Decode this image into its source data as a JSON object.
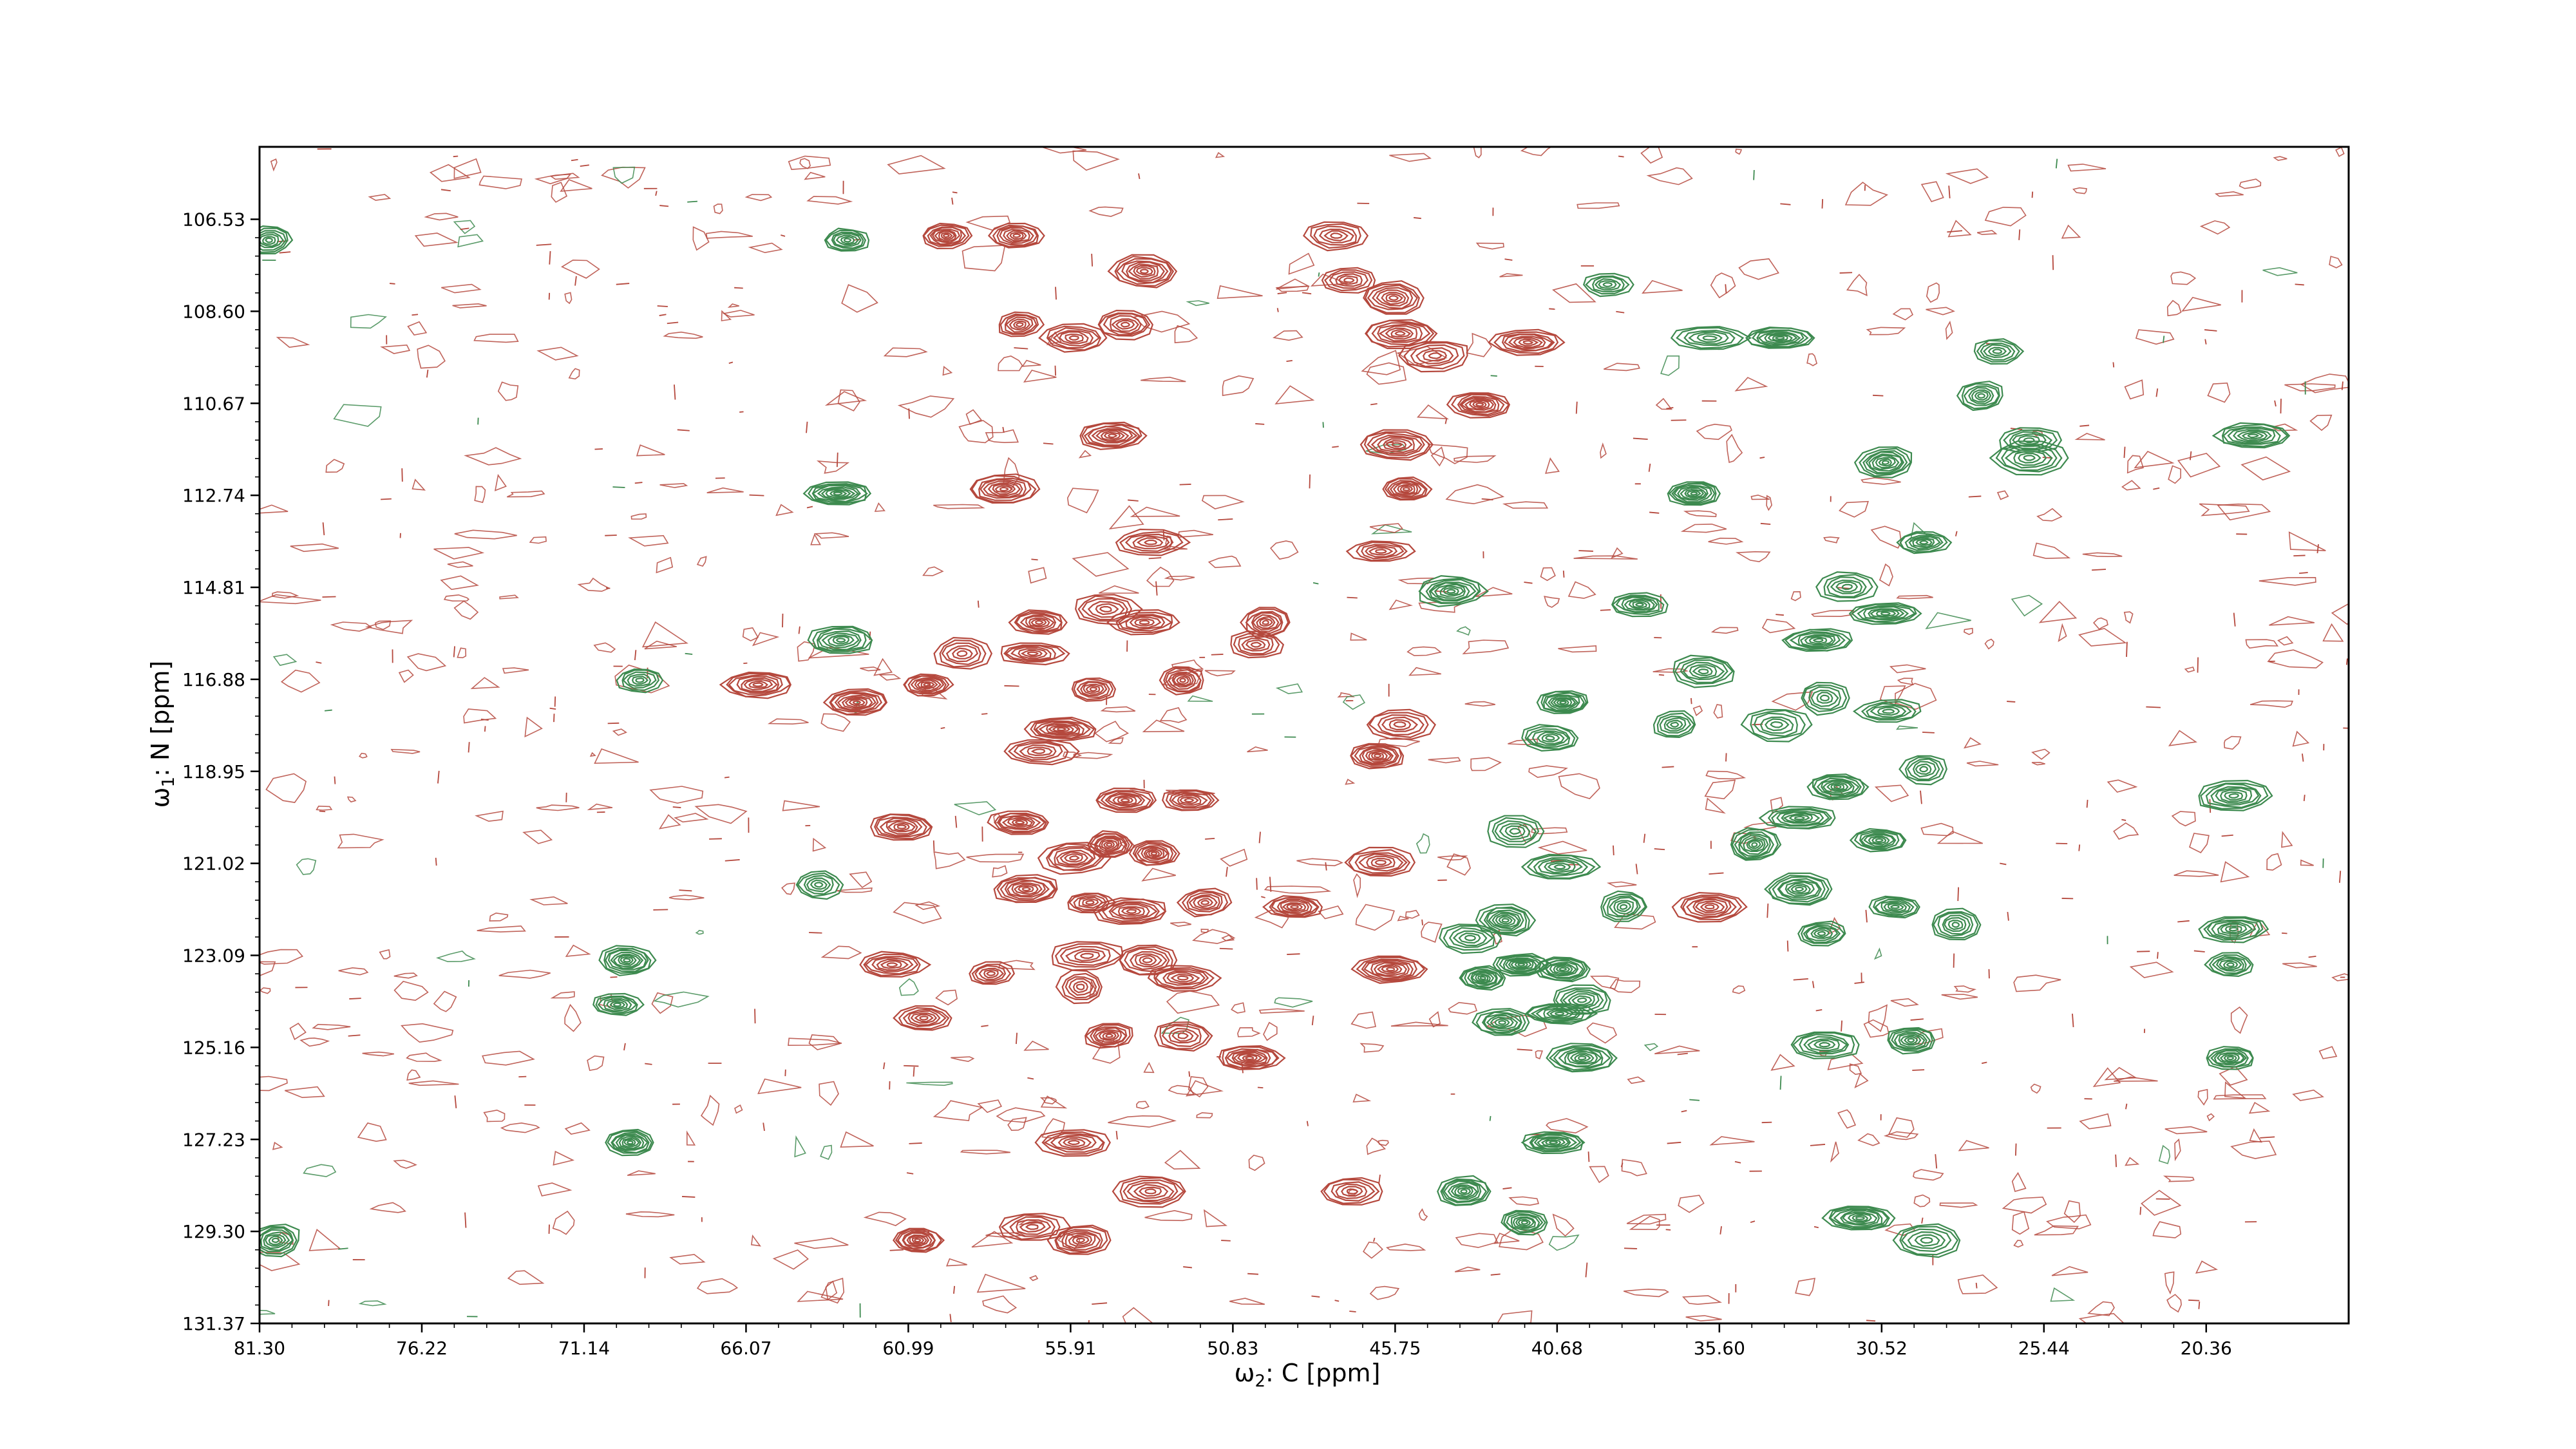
{
  "chart_data": {
    "type": "contour",
    "title": "",
    "xlabel_symbol": "ω",
    "xlabel_sub": "2",
    "xlabel_rest": ": C [ppm]",
    "ylabel_symbol": "ω",
    "ylabel_sub": "1",
    "ylabel_rest": ": N [ppm]",
    "xlim": [
      81.3,
      15.9
    ],
    "ylim": [
      131.37,
      104.9
    ],
    "x_inverted": true,
    "y_inverted": true,
    "xticks": [
      81.3,
      76.22,
      71.14,
      66.07,
      60.99,
      55.91,
      50.83,
      45.75,
      40.68,
      35.6,
      30.52,
      25.44,
      20.36
    ],
    "xtick_labels": [
      "81.30",
      "76.22",
      "71.14",
      "66.07",
      "60.99",
      "55.91",
      "50.83",
      "45.75",
      "40.68",
      "35.60",
      "30.52",
      "25.44",
      "20.36"
    ],
    "yticks": [
      106.53,
      108.6,
      110.67,
      112.74,
      114.81,
      116.88,
      118.95,
      121.02,
      123.09,
      125.16,
      127.23,
      129.3,
      131.37
    ],
    "ytick_labels": [
      "106.53",
      "108.60",
      "110.67",
      "112.74",
      "114.81",
      "116.88",
      "118.95",
      "121.02",
      "123.09",
      "125.16",
      "127.23",
      "129.30",
      "131.37"
    ],
    "grid": false,
    "positive_color": "#b5483d",
    "negative_color": "#3d8a4f",
    "positive_peaks": [
      {
        "x": 59.8,
        "y": 106.9
      },
      {
        "x": 57.6,
        "y": 106.9
      },
      {
        "x": 53.6,
        "y": 107.7
      },
      {
        "x": 57.5,
        "y": 108.9
      },
      {
        "x": 54.2,
        "y": 108.9
      },
      {
        "x": 55.8,
        "y": 109.2
      },
      {
        "x": 54.6,
        "y": 111.4
      },
      {
        "x": 58.0,
        "y": 112.6
      },
      {
        "x": 53.4,
        "y": 113.8
      },
      {
        "x": 56.9,
        "y": 115.6
      },
      {
        "x": 54.8,
        "y": 115.3
      },
      {
        "x": 53.6,
        "y": 115.6
      },
      {
        "x": 59.3,
        "y": 116.3
      },
      {
        "x": 57.1,
        "y": 116.3
      },
      {
        "x": 52.4,
        "y": 116.9
      },
      {
        "x": 55.2,
        "y": 117.1
      },
      {
        "x": 60.4,
        "y": 117.0
      },
      {
        "x": 62.6,
        "y": 117.4
      },
      {
        "x": 65.7,
        "y": 117.0
      },
      {
        "x": 56.2,
        "y": 118.0
      },
      {
        "x": 56.9,
        "y": 118.5
      },
      {
        "x": 54.2,
        "y": 119.6
      },
      {
        "x": 52.2,
        "y": 119.6
      },
      {
        "x": 57.5,
        "y": 120.1
      },
      {
        "x": 61.2,
        "y": 120.2
      },
      {
        "x": 54.7,
        "y": 120.6
      },
      {
        "x": 55.8,
        "y": 120.9
      },
      {
        "x": 53.3,
        "y": 120.8
      },
      {
        "x": 57.3,
        "y": 121.6
      },
      {
        "x": 55.3,
        "y": 121.9
      },
      {
        "x": 51.7,
        "y": 121.9
      },
      {
        "x": 48.9,
        "y": 122.0
      },
      {
        "x": 58.4,
        "y": 123.5
      },
      {
        "x": 61.5,
        "y": 123.3
      },
      {
        "x": 55.6,
        "y": 123.8
      },
      {
        "x": 52.4,
        "y": 123.6
      },
      {
        "x": 53.5,
        "y": 123.2
      },
      {
        "x": 54.7,
        "y": 124.9
      },
      {
        "x": 52.4,
        "y": 124.9
      },
      {
        "x": 60.5,
        "y": 124.5
      },
      {
        "x": 50.3,
        "y": 125.4
      },
      {
        "x": 47.2,
        "y": 107.9
      },
      {
        "x": 45.8,
        "y": 108.3
      },
      {
        "x": 45.6,
        "y": 109.1
      },
      {
        "x": 44.5,
        "y": 109.6
      },
      {
        "x": 43.1,
        "y": 110.7
      },
      {
        "x": 45.7,
        "y": 111.6
      },
      {
        "x": 45.4,
        "y": 112.6
      },
      {
        "x": 46.2,
        "y": 114.0
      },
      {
        "x": 45.6,
        "y": 117.9
      },
      {
        "x": 46.3,
        "y": 118.6
      },
      {
        "x": 46.2,
        "y": 121.0
      },
      {
        "x": 45.9,
        "y": 123.4
      },
      {
        "x": 41.6,
        "y": 109.3
      },
      {
        "x": 47.6,
        "y": 106.9
      },
      {
        "x": 55.8,
        "y": 127.3
      },
      {
        "x": 57.1,
        "y": 129.2
      },
      {
        "x": 53.4,
        "y": 128.4
      },
      {
        "x": 55.6,
        "y": 129.5
      },
      {
        "x": 60.7,
        "y": 129.5
      },
      {
        "x": 49.8,
        "y": 115.6
      },
      {
        "x": 50.1,
        "y": 116.1
      },
      {
        "x": 55.4,
        "y": 123.1
      },
      {
        "x": 54.0,
        "y": 122.1
      },
      {
        "x": 47.1,
        "y": 128.4
      },
      {
        "x": 35.9,
        "y": 122.0
      }
    ],
    "negative_peaks": [
      {
        "x": 81.0,
        "y": 107.0
      },
      {
        "x": 62.9,
        "y": 107.0
      },
      {
        "x": 63.2,
        "y": 112.7
      },
      {
        "x": 63.1,
        "y": 116.0
      },
      {
        "x": 69.4,
        "y": 116.9
      },
      {
        "x": 63.8,
        "y": 121.5
      },
      {
        "x": 69.8,
        "y": 123.2
      },
      {
        "x": 70.1,
        "y": 124.2
      },
      {
        "x": 69.7,
        "y": 127.3
      },
      {
        "x": 80.8,
        "y": 129.5
      },
      {
        "x": 39.1,
        "y": 108.0
      },
      {
        "x": 37.0,
        "y": 117.9
      },
      {
        "x": 38.1,
        "y": 115.2
      },
      {
        "x": 33.7,
        "y": 109.2
      },
      {
        "x": 35.9,
        "y": 109.2
      },
      {
        "x": 26.9,
        "y": 109.5
      },
      {
        "x": 27.4,
        "y": 110.5
      },
      {
        "x": 25.9,
        "y": 111.5
      },
      {
        "x": 18.9,
        "y": 111.4
      },
      {
        "x": 36.1,
        "y": 116.7
      },
      {
        "x": 40.5,
        "y": 117.4
      },
      {
        "x": 40.9,
        "y": 118.2
      },
      {
        "x": 33.8,
        "y": 117.9
      },
      {
        "x": 32.3,
        "y": 117.3
      },
      {
        "x": 30.3,
        "y": 117.6
      },
      {
        "x": 30.4,
        "y": 115.4
      },
      {
        "x": 31.6,
        "y": 114.8
      },
      {
        "x": 32.5,
        "y": 116.0
      },
      {
        "x": 29.2,
        "y": 118.9
      },
      {
        "x": 31.9,
        "y": 119.3
      },
      {
        "x": 33.1,
        "y": 120.0
      },
      {
        "x": 30.6,
        "y": 120.5
      },
      {
        "x": 34.5,
        "y": 120.6
      },
      {
        "x": 33.1,
        "y": 121.6
      },
      {
        "x": 30.1,
        "y": 122.0
      },
      {
        "x": 28.2,
        "y": 122.4
      },
      {
        "x": 32.4,
        "y": 122.6
      },
      {
        "x": 19.5,
        "y": 122.5
      },
      {
        "x": 19.6,
        "y": 123.3
      },
      {
        "x": 19.5,
        "y": 119.5
      },
      {
        "x": 38.6,
        "y": 122.0
      },
      {
        "x": 42.3,
        "y": 122.3
      },
      {
        "x": 42.0,
        "y": 120.3
      },
      {
        "x": 40.6,
        "y": 121.1
      },
      {
        "x": 43.4,
        "y": 122.7
      },
      {
        "x": 43.0,
        "y": 123.6
      },
      {
        "x": 41.8,
        "y": 123.3
      },
      {
        "x": 40.5,
        "y": 123.4
      },
      {
        "x": 42.4,
        "y": 124.6
      },
      {
        "x": 40.6,
        "y": 124.4
      },
      {
        "x": 32.3,
        "y": 125.1
      },
      {
        "x": 29.6,
        "y": 125.0
      },
      {
        "x": 39.9,
        "y": 125.4
      },
      {
        "x": 19.6,
        "y": 125.4
      },
      {
        "x": 40.8,
        "y": 127.3
      },
      {
        "x": 41.7,
        "y": 129.1
      },
      {
        "x": 43.6,
        "y": 128.4
      },
      {
        "x": 31.2,
        "y": 129.0
      },
      {
        "x": 29.1,
        "y": 129.5
      },
      {
        "x": 44.0,
        "y": 114.9
      },
      {
        "x": 36.4,
        "y": 112.7
      },
      {
        "x": 29.2,
        "y": 113.8
      },
      {
        "x": 25.9,
        "y": 111.9
      },
      {
        "x": 30.4,
        "y": 112.0
      },
      {
        "x": 39.9,
        "y": 124.1
      }
    ]
  }
}
